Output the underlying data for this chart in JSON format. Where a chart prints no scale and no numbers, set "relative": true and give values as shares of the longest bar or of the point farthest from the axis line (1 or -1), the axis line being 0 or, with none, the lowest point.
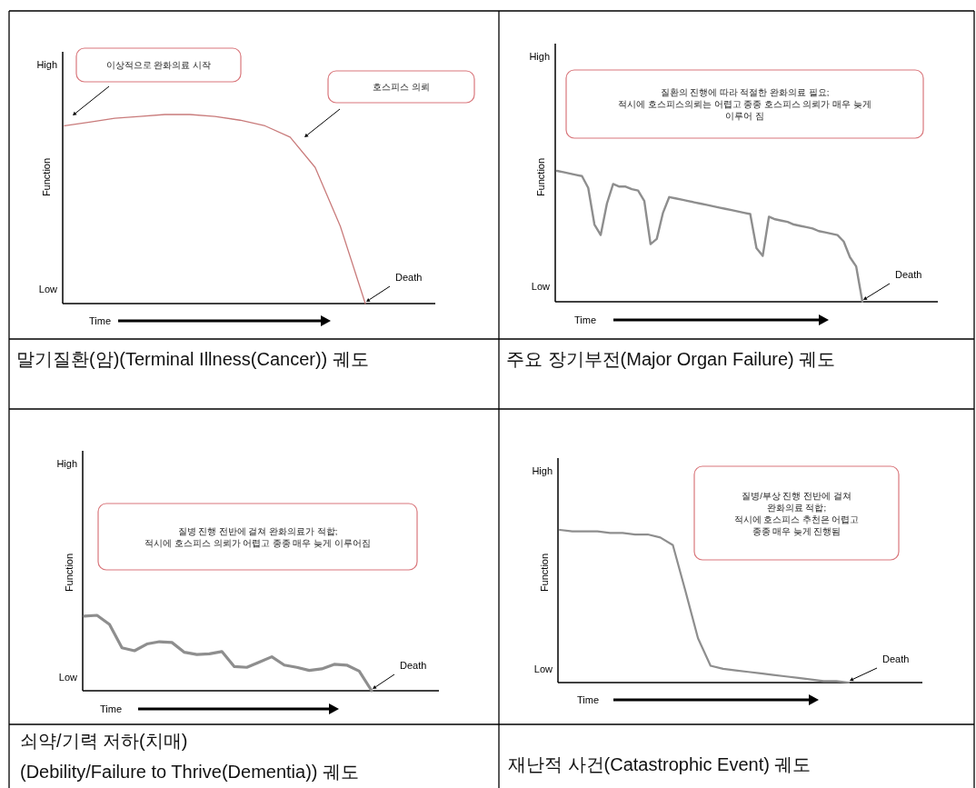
{
  "chart_data": [
    {
      "type": "line",
      "relative": true,
      "title": "말기질환(암)(Terminal Illness(Cancer)) 궤도",
      "xlabel": "Time",
      "ylabel": "Function",
      "categories": [
        null,
        null,
        null,
        null,
        null,
        null,
        null,
        null,
        null,
        null,
        null,
        null,
        null
      ],
      "series": [
        {
          "color": "#c97b7b",
          "values": [
            0.94,
            0.96,
            0.98,
            0.99,
            1.0,
            1.0,
            0.99,
            0.97,
            0.94,
            0.88,
            0.72,
            0.41,
            0
          ]
        }
      ],
      "annotations": [
        "High",
        "Low",
        "이상적으로 완화의료 시작",
        "호스피스 의뢰",
        "Death"
      ]
    },
    {
      "type": "line",
      "relative": true,
      "title": "주요 장기부전(Major Organ Failure) 궤도",
      "xlabel": "Time",
      "ylabel": "Function",
      "categories": [
        null,
        null,
        null,
        null,
        null,
        null,
        null,
        null,
        null,
        null,
        null,
        null,
        null,
        null,
        null,
        null,
        null,
        null,
        null,
        null,
        null,
        null,
        null,
        null,
        null,
        null,
        null,
        null,
        null,
        null,
        null,
        null,
        null,
        null,
        null,
        null,
        null,
        null,
        null,
        null,
        null,
        null,
        null,
        null,
        null,
        null,
        null,
        null,
        null,
        null
      ],
      "series": [
        {
          "color": "#8e8e8e",
          "values": [
            1.0,
            0.99,
            0.98,
            0.97,
            0.96,
            0.87,
            0.59,
            0.51,
            0.75,
            0.9,
            0.88,
            0.88,
            0.86,
            0.85,
            0.77,
            0.44,
            0.48,
            0.68,
            0.8,
            0.79,
            0.78,
            0.77,
            0.76,
            0.75,
            0.74,
            0.73,
            0.72,
            0.71,
            0.7,
            0.69,
            0.68,
            0.67,
            0.41,
            0.35,
            0.65,
            0.63,
            0.62,
            0.61,
            0.59,
            0.58,
            0.57,
            0.56,
            0.54,
            0.53,
            0.52,
            0.51,
            0.46,
            0.34,
            0.27,
            0
          ]
        }
      ],
      "annotations": [
        "High",
        "Low",
        "질환의 진행에 따라 적절한 완화의료 필요;\n적시에 호스피스의뢰는 어렵고 종종 호스피스 의뢰가 매우 늦게\n이루어 짐",
        "Death"
      ]
    },
    {
      "type": "line",
      "relative": true,
      "title": "쇠약/기력 저하(치매)\n(Debility/Failure to Thrive(Dementia)) 궤도",
      "xlabel": "Time",
      "ylabel": "Function",
      "categories": [
        null,
        null,
        null,
        null,
        null,
        null,
        null,
        null,
        null,
        null,
        null,
        null,
        null,
        null,
        null,
        null,
        null,
        null,
        null,
        null,
        null,
        null,
        null,
        null
      ],
      "series": [
        {
          "color": "#8e8e8e",
          "values": [
            0.99,
            1.0,
            0.88,
            0.57,
            0.53,
            0.62,
            0.65,
            0.64,
            0.51,
            0.48,
            0.49,
            0.52,
            0.32,
            0.31,
            0.38,
            0.45,
            0.34,
            0.31,
            0.27,
            0.29,
            0.35,
            0.34,
            0.26,
            0
          ]
        }
      ],
      "annotations": [
        "High",
        "Low",
        "질병 진행 전반에 걸쳐 완화의료가 적합;\n적시에 호스피스 의뢰가 어렵고 종종 매우 늦게 이루어짐",
        "Death"
      ]
    },
    {
      "type": "line",
      "relative": true,
      "title": "재난적 사건(Catastrophic Event) 궤도",
      "xlabel": "Time",
      "ylabel": "Function",
      "categories": [
        null,
        null,
        null,
        null,
        null,
        null,
        null,
        null,
        null,
        null,
        null,
        null,
        null,
        null,
        null,
        null,
        null,
        null,
        null,
        null,
        null,
        null,
        null,
        null
      ],
      "series": [
        {
          "color": "#8e8e8e",
          "values": [
            1.0,
            0.99,
            0.99,
            0.99,
            0.98,
            0.98,
            0.97,
            0.97,
            0.95,
            0.9,
            0.6,
            0.29,
            0.11,
            0.09,
            0.08,
            0.07,
            0.06,
            0.05,
            0.04,
            0.03,
            0.02,
            0.01,
            0.01,
            0
          ]
        }
      ],
      "annotations": [
        "High",
        "Low",
        "질병/부상 진행 전반에 걸쳐\n완화의료 적합;\n적시에 호스피스 추천은 어렵고\n종종 매우 늦게 진행됨",
        "Death"
      ]
    }
  ]
}
